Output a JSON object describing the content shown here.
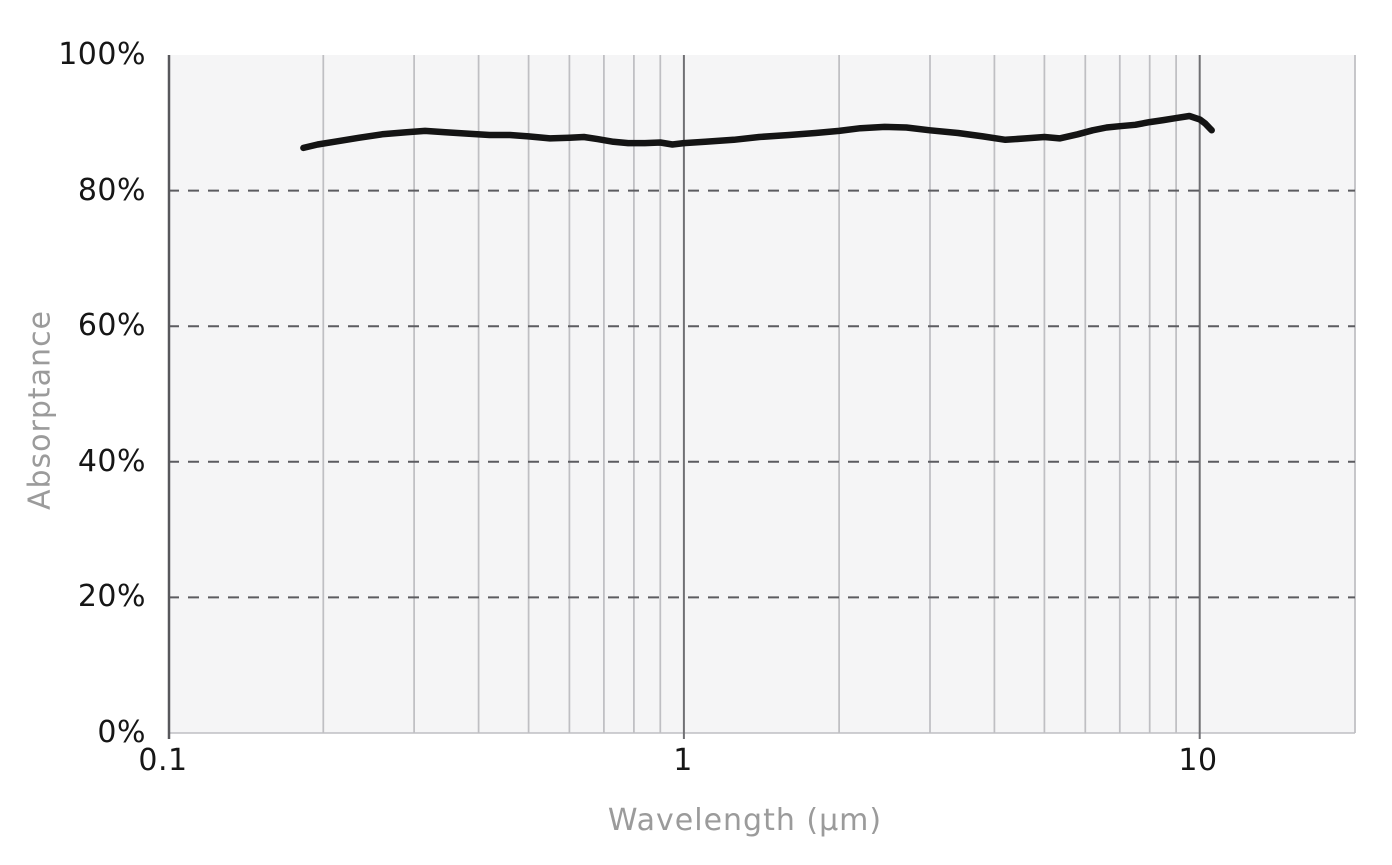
{
  "colors": {
    "page_bg": "#ffffff",
    "plot_bg": "#f5f5f6",
    "grid_minor": "#bfbfc3",
    "grid_major": "#707074",
    "axis_line": "#58585c",
    "dashed_line": "#5c5c60",
    "curve": "#141414",
    "tick_text": "#161616",
    "axis_title_text": "#9b9b9b"
  },
  "chart_data": {
    "type": "line",
    "title": "",
    "xlabel": "Wavelength (μm)",
    "ylabel": "Absorptance",
    "x_scale": "log",
    "xlim": [
      0.1,
      20
    ],
    "ylim": [
      0,
      100
    ],
    "grid": true,
    "legend": "none",
    "x_ticks": [
      {
        "value": 0.1,
        "label": "0.1"
      },
      {
        "value": 1,
        "label": "1"
      },
      {
        "value": 10,
        "label": "10"
      }
    ],
    "y_ticks": [
      {
        "value": 0,
        "label": "0%"
      },
      {
        "value": 20,
        "label": "20%"
      },
      {
        "value": 40,
        "label": "40%"
      },
      {
        "value": 60,
        "label": "60%"
      },
      {
        "value": 80,
        "label": "80%"
      },
      {
        "value": 100,
        "label": "100%"
      }
    ],
    "x_gridlines_minor": [
      0.2,
      0.3,
      0.4,
      0.5,
      0.6,
      0.7,
      0.8,
      0.9,
      2,
      3,
      4,
      5,
      6,
      7,
      8,
      9,
      20
    ],
    "x_gridlines_major": [
      1,
      10
    ],
    "y_gridlines_dashed": [
      20,
      40,
      60,
      80
    ],
    "series": [
      {
        "name": "Absorptance",
        "units": {
          "x": "μm",
          "y": "%"
        },
        "points": [
          [
            0.183,
            86.3
          ],
          [
            0.195,
            86.8
          ],
          [
            0.21,
            87.2
          ],
          [
            0.235,
            87.8
          ],
          [
            0.26,
            88.3
          ],
          [
            0.29,
            88.6
          ],
          [
            0.315,
            88.8
          ],
          [
            0.345,
            88.6
          ],
          [
            0.38,
            88.4
          ],
          [
            0.42,
            88.2
          ],
          [
            0.46,
            88.2
          ],
          [
            0.5,
            88.0
          ],
          [
            0.55,
            87.7
          ],
          [
            0.6,
            87.8
          ],
          [
            0.64,
            87.9
          ],
          [
            0.68,
            87.6
          ],
          [
            0.73,
            87.2
          ],
          [
            0.78,
            87.0
          ],
          [
            0.84,
            87.0
          ],
          [
            0.9,
            87.1
          ],
          [
            0.95,
            86.8
          ],
          [
            1.0,
            87.0
          ],
          [
            1.1,
            87.2
          ],
          [
            1.25,
            87.5
          ],
          [
            1.4,
            87.9
          ],
          [
            1.6,
            88.2
          ],
          [
            1.8,
            88.5
          ],
          [
            2.0,
            88.8
          ],
          [
            2.2,
            89.2
          ],
          [
            2.45,
            89.4
          ],
          [
            2.7,
            89.3
          ],
          [
            3.0,
            88.9
          ],
          [
            3.4,
            88.5
          ],
          [
            3.8,
            88.0
          ],
          [
            4.2,
            87.5
          ],
          [
            4.6,
            87.7
          ],
          [
            5.0,
            87.9
          ],
          [
            5.35,
            87.7
          ],
          [
            5.8,
            88.3
          ],
          [
            6.2,
            88.9
          ],
          [
            6.6,
            89.3
          ],
          [
            7.0,
            89.5
          ],
          [
            7.5,
            89.7
          ],
          [
            8.0,
            90.1
          ],
          [
            8.5,
            90.4
          ],
          [
            9.0,
            90.7
          ],
          [
            9.55,
            91.0
          ],
          [
            10.0,
            90.5
          ],
          [
            10.25,
            89.9
          ],
          [
            10.55,
            88.9
          ]
        ]
      }
    ]
  }
}
